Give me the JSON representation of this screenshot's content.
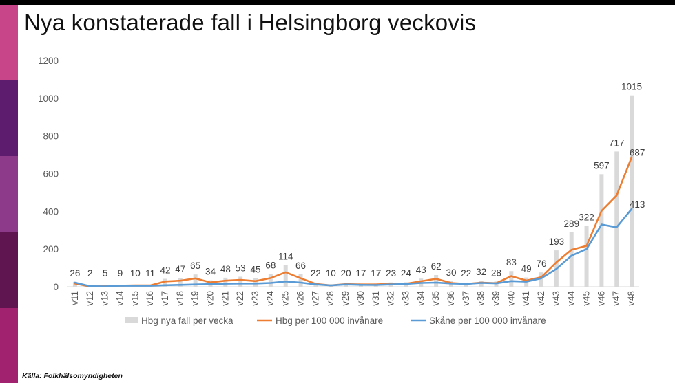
{
  "slide": {
    "title": "Nya konstaterade fall i Helsingborg veckovis",
    "source": "Källa: Folkhälsomyndigheten",
    "accent_stripes": [
      "#c9458a",
      "#5e1c6e",
      "#8e3a8a",
      "#5f1650",
      "#a1236f"
    ]
  },
  "chart_data": {
    "type": "bar",
    "title": "",
    "xlabel": "",
    "ylabel": "",
    "ylim": [
      0,
      1200
    ],
    "yticks": [
      0,
      200,
      400,
      600,
      800,
      1000,
      1200
    ],
    "grid": false,
    "legend_position": "bottom",
    "categories": [
      "v11",
      "v12",
      "v13",
      "v14",
      "v15",
      "v16",
      "v17",
      "v18",
      "v19",
      "v20",
      "v21",
      "v22",
      "v23",
      "v24",
      "v25",
      "v26",
      "v27",
      "v28",
      "v29",
      "v30",
      "v31",
      "v32",
      "v33",
      "v34",
      "v35",
      "v36",
      "v37",
      "v38",
      "v39",
      "v40",
      "v41",
      "v42",
      "v43",
      "v44",
      "v45",
      "v46",
      "v47",
      "v48"
    ],
    "series": [
      {
        "name": "Hbg nya fall per vecka",
        "type": "bar",
        "color": "#d9d9d9",
        "show_labels": true,
        "values": [
          26,
          2,
          5,
          9,
          10,
          11,
          42,
          47,
          65,
          34,
          48,
          53,
          45,
          68,
          114,
          66,
          22,
          10,
          20,
          17,
          17,
          23,
          24,
          43,
          62,
          30,
          22,
          32,
          28,
          83,
          49,
          76,
          193,
          289,
          322,
          597,
          717,
          1015
        ]
      },
      {
        "name": "Hbg per 100 000 invånare",
        "type": "line",
        "color": "#ed7d31",
        "show_labels": false,
        "last_label": "687",
        "values": [
          17,
          1,
          3,
          6,
          7,
          7,
          28,
          32,
          44,
          23,
          32,
          36,
          30,
          46,
          77,
          45,
          15,
          7,
          14,
          12,
          12,
          16,
          16,
          29,
          42,
          20,
          15,
          22,
          19,
          56,
          33,
          51,
          130,
          196,
          217,
          403,
          484,
          687
        ]
      },
      {
        "name": "Skåne per 100 000 invånare",
        "type": "line",
        "color": "#5b9bd5",
        "show_labels": false,
        "last_label": "413",
        "values": [
          22,
          3,
          2,
          5,
          5,
          5,
          8,
          10,
          12,
          14,
          16,
          17,
          17,
          20,
          28,
          22,
          12,
          7,
          12,
          10,
          9,
          12,
          15,
          20,
          22,
          17,
          15,
          20,
          18,
          30,
          27,
          45,
          95,
          165,
          200,
          330,
          315,
          413
        ]
      }
    ]
  }
}
